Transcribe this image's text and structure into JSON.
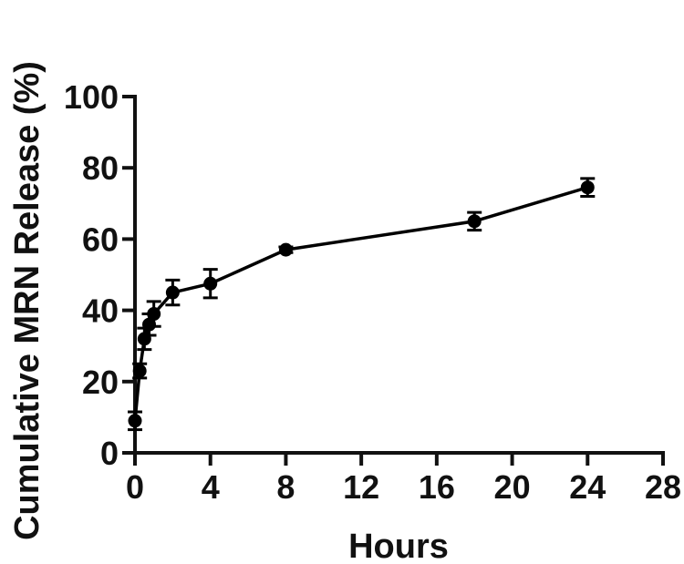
{
  "chart_data": {
    "type": "line",
    "title": "",
    "xlabel": "Hours",
    "ylabel": "Cumulative MRN Release (%)",
    "xlim": [
      0,
      28
    ],
    "ylim": [
      0,
      100
    ],
    "xticks": [
      0,
      4,
      8,
      12,
      16,
      20,
      24,
      28
    ],
    "yticks": [
      0,
      20,
      40,
      60,
      80,
      100
    ],
    "grid": false,
    "legend": "none",
    "series": [
      {
        "color": "#000000",
        "marker": "circle",
        "points": [
          {
            "x": 0,
            "y": 9,
            "err": 2.5
          },
          {
            "x": 0.25,
            "y": 23,
            "err": 2
          },
          {
            "x": 0.5,
            "y": 32,
            "err": 3
          },
          {
            "x": 0.75,
            "y": 36,
            "err": 3
          },
          {
            "x": 1,
            "y": 39,
            "err": 3.5
          },
          {
            "x": 2,
            "y": 45,
            "err": 3.5
          },
          {
            "x": 4,
            "y": 47.5,
            "err": 4
          },
          {
            "x": 8,
            "y": 57,
            "err": 0.8
          },
          {
            "x": 18,
            "y": 65,
            "err": 2.5
          },
          {
            "x": 24,
            "y": 74.5,
            "err": 2.5
          }
        ]
      }
    ]
  }
}
